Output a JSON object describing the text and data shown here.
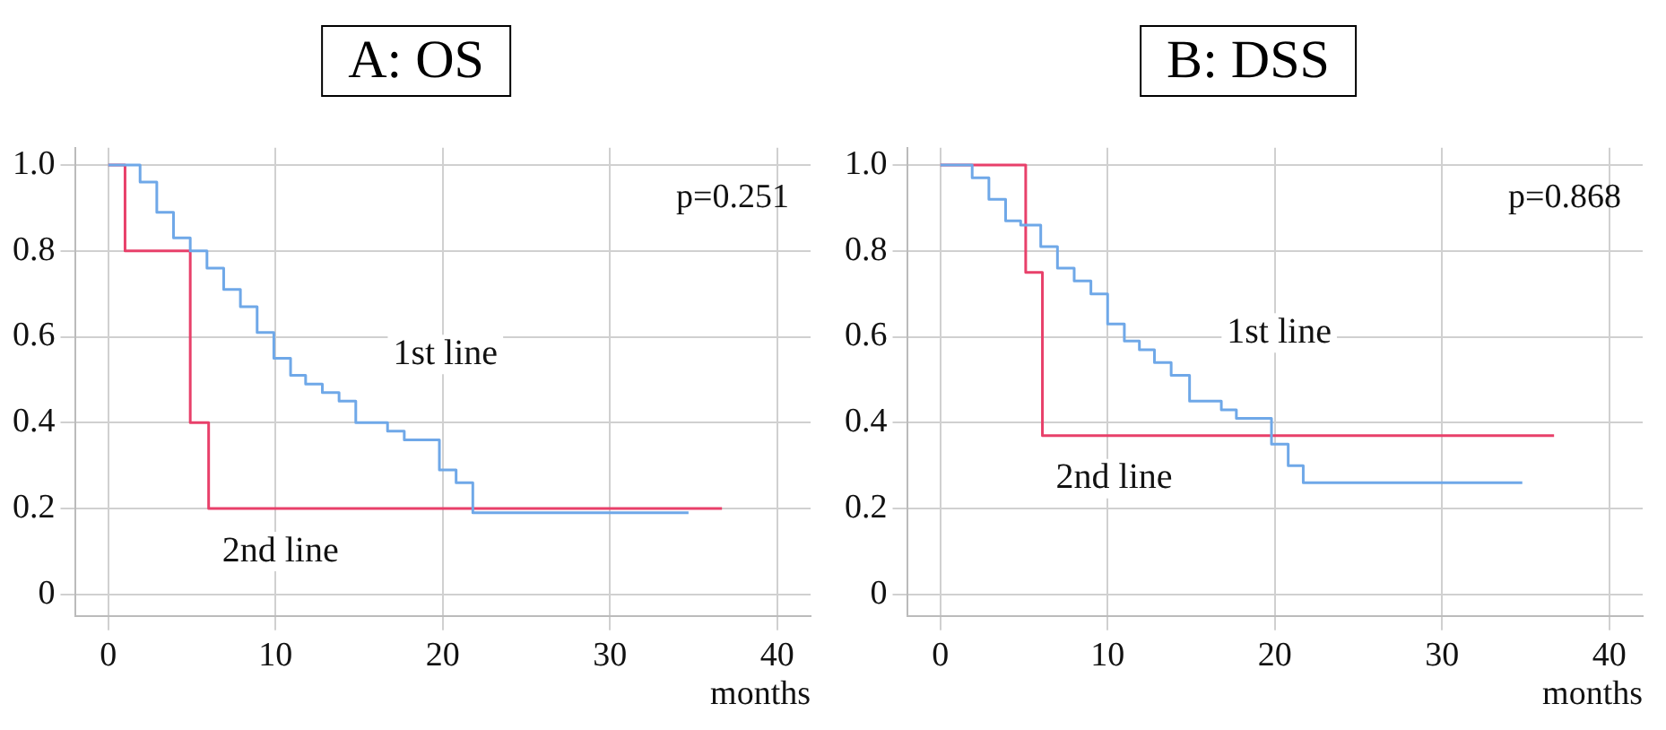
{
  "chart_data": [
    {
      "type": "step",
      "title": "A: OS",
      "xlabel": "months",
      "xlim": [
        -2,
        42
      ],
      "xticks": [
        0,
        10,
        20,
        30,
        40
      ],
      "ylim": [
        -0.05,
        1.04
      ],
      "yticks": [
        0,
        0.2,
        0.4,
        0.6,
        0.8,
        {
          "value": 1,
          "label": "1.0"
        }
      ],
      "grid": true,
      "legend": false,
      "series": [
        {
          "name": "1st line",
          "color": "#6fa8e8",
          "x": [
            0,
            1.9,
            2.9,
            3.9,
            4.9,
            5.9,
            6.9,
            7.9,
            8.9,
            9.9,
            10.9,
            11.8,
            12.8,
            13.8,
            14.8,
            16.7,
            17.7,
            19.8,
            20.8,
            21.8,
            34.7
          ],
          "values": [
            1,
            0.96,
            0.89,
            0.83,
            0.8,
            0.76,
            0.71,
            0.67,
            0.61,
            0.55,
            0.51,
            0.49,
            0.47,
            0.45,
            0.4,
            0.38,
            0.36,
            0.29,
            0.26,
            0.19,
            0.19
          ]
        },
        {
          "name": "2nd line",
          "color": "#e8406a",
          "x": [
            0,
            1,
            4.9,
            6,
            36.7
          ],
          "values": [
            1,
            0.8,
            0.4,
            0.2,
            0.2
          ]
        }
      ],
      "annotations": [
        "p=0.251"
      ]
    },
    {
      "type": "step",
      "title": "B: DSS",
      "xlabel": "months",
      "xlim": [
        -2,
        42
      ],
      "xticks": [
        0,
        10,
        20,
        30,
        40
      ],
      "ylim": [
        -0.05,
        1.04
      ],
      "yticks": [
        0,
        0.2,
        0.4,
        0.6,
        0.8,
        {
          "value": 1,
          "label": "1.0"
        }
      ],
      "grid": true,
      "legend": false,
      "series": [
        {
          "name": "1st line",
          "color": "#6fa8e8",
          "x": [
            0,
            1.9,
            2.9,
            3.9,
            4.8,
            6,
            7,
            8,
            9,
            10,
            11,
            11.9,
            12.8,
            13.8,
            14.9,
            16.8,
            17.7,
            19.8,
            20.8,
            21.7,
            34.8
          ],
          "values": [
            1,
            0.97,
            0.92,
            0.87,
            0.86,
            0.81,
            0.76,
            0.73,
            0.7,
            0.63,
            0.59,
            0.57,
            0.54,
            0.51,
            0.45,
            0.43,
            0.41,
            0.35,
            0.3,
            0.26,
            0.26
          ]
        },
        {
          "name": "2nd line",
          "color": "#e8406a",
          "x": [
            0,
            5.1,
            6.1,
            36.7
          ],
          "values": [
            1,
            0.75,
            0.37,
            0.37
          ]
        }
      ],
      "annotations": [
        "p=0.868"
      ]
    }
  ]
}
